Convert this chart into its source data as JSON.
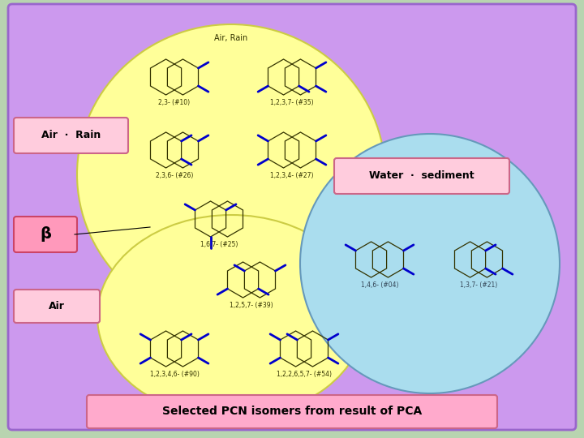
{
  "outer_bg": "#b8d4b0",
  "main_bg": "#cc99ee",
  "main_bg_edge": "#9966cc",
  "yellow_color": "#ffff99",
  "yellow_edge": "#cccc44",
  "blue_color": "#aaddee",
  "blue_edge": "#6699bb",
  "label_air_rain_text": "Air  ·  Rain",
  "label_water_sed_text": "Water  ·  sediment",
  "label_beta_text": "β",
  "label_air_text": "Air",
  "label_air_rain_box": "#ffccdd",
  "label_water_sed_box": "#ffccdd",
  "label_beta_box": "#ff99bb",
  "label_air_box": "#ffccdd",
  "footer_text": "Selected PCN isomers from result of PCA",
  "footer_box": "#ffaacc",
  "top_note": "Air, Rain",
  "struct_color": "#333300",
  "cl_color": "#0000cc"
}
